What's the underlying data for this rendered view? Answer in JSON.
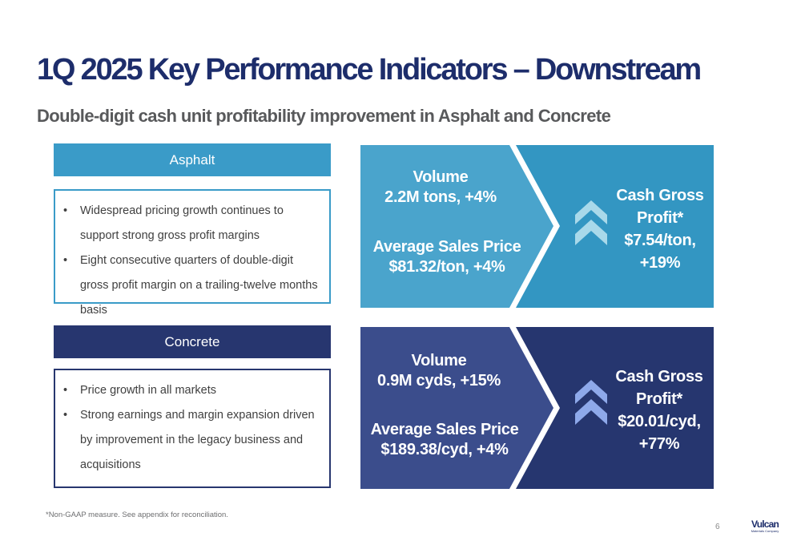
{
  "slide": {
    "title": "1Q 2025 Key Performance Indicators – Downstream",
    "subtitle": "Double-digit cash unit profitability improvement in Asphalt and Concrete",
    "footnote": "*Non-GAAP measure. See appendix for reconciliation.",
    "page_number": "6",
    "logo_text": "Vulcan",
    "logo_subtext": "Materials Company"
  },
  "segments": {
    "asphalt": {
      "header": "Asphalt",
      "bullets": [
        "Widespread pricing growth continues to support strong gross profit margins",
        "Eight consecutive quarters of double-digit gross profit margin on a trailing-twelve months basis"
      ],
      "volume_label": "Volume",
      "volume_value": "2.2M tons, +4%",
      "asp_label": "Average Sales Price",
      "asp_value": "$81.32/ton, +4%",
      "cgp_line1": "Cash Gross",
      "cgp_line2": "Profit*",
      "cgp_value": "$7.54/ton,",
      "cgp_change": "+19%",
      "arrow_icon": "double-chevron-up-icon"
    },
    "concrete": {
      "header": "Concrete",
      "bullets": [
        "Price growth in all markets",
        "Strong earnings and margin expansion driven by improvement in the legacy business and acquisitions"
      ],
      "volume_label": "Volume",
      "volume_value": "0.9M cyds, +15%",
      "asp_label": "Average Sales Price",
      "asp_value": "$189.38/cyd, +4%",
      "cgp_line1": "Cash Gross",
      "cgp_line2": "Profit*",
      "cgp_value": "$20.01/cyd,",
      "cgp_change": "+77%",
      "arrow_icon": "double-chevron-up-icon"
    }
  },
  "colors": {
    "navy": "#1d2d6b",
    "asphalt_blue": "#3a9bc8",
    "asphalt_panel_left": "#4aa4cc",
    "asphalt_panel_right": "#3396c2",
    "concrete_navy": "#27366f",
    "concrete_panel_left": "#3b4d8c",
    "concrete_panel_right": "#26366f",
    "asphalt_chevron": "#a9d9ea",
    "concrete_chevron": "#8ea9ea"
  }
}
